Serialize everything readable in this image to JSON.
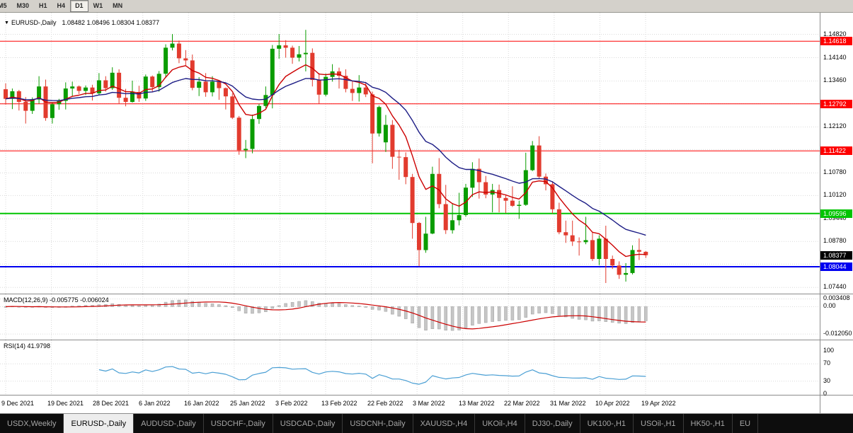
{
  "toolbar": {
    "periods": [
      "M5",
      "M30",
      "H1",
      "H4",
      "D1",
      "W1",
      "MN"
    ],
    "active_period": "D1"
  },
  "chart": {
    "title": {
      "dropdown_icon": "▼",
      "symbol": "EURUSD-,Daily",
      "ohlc": "1.08482 1.08496 1.08304 1.08377"
    },
    "axis": {
      "p_max": 1.1545,
      "p_min": 1.0726,
      "grid_prices": [
        1.1482,
        1.1414,
        1.1346,
        1.128,
        1.1212,
        1.1146,
        1.1078,
        1.1012,
        1.0944,
        1.0878,
        1.0812,
        1.0744
      ],
      "labels": [
        {
          "text": "1.14820",
          "price": 1.1482
        },
        {
          "text": "1.14140",
          "price": 1.1414
        },
        {
          "text": "1.13460",
          "price": 1.1346
        },
        {
          "text": "1.12120",
          "price": 1.1212
        },
        {
          "text": "1.10780",
          "price": 1.1078
        },
        {
          "text": "1.10120",
          "price": 1.1012
        },
        {
          "text": "1.09440",
          "price": 1.0944
        },
        {
          "text": "1.08780",
          "price": 1.0878
        },
        {
          "text": "1.07440",
          "price": 1.0744
        }
      ]
    },
    "hlines": [
      {
        "label": "1.14618",
        "price": 1.14618,
        "color": "#fe0000",
        "width": 1
      },
      {
        "label": "1.12792",
        "price": 1.12792,
        "color": "#fe0000",
        "width": 1
      },
      {
        "label": "1.11422",
        "price": 1.11422,
        "color": "#fe0000",
        "width": 1
      },
      {
        "label": "1.09596",
        "price": 1.09596,
        "color": "#00c400",
        "width": 2
      },
      {
        "label": "1.08044",
        "price": 1.08044,
        "color": "#0000f0",
        "width": 2
      }
    ],
    "current_price": {
      "label": "1.08377",
      "price": 1.08377,
      "bg": "#000000"
    }
  },
  "chart_data": {
    "type": "candlestick",
    "symbol": "EURUSD-",
    "timeframe": "Daily",
    "current_ohlc": {
      "open": 1.08482,
      "high": 1.08496,
      "low": 1.08304,
      "close": 1.08377
    },
    "y_range": [
      1.0726,
      1.1545
    ],
    "horizontal_levels": [
      1.14618,
      1.12792,
      1.11422,
      1.09596,
      1.08044
    ],
    "x_tick_labels": [
      "9 Dec 2021",
      "19 Dec 2021",
      "28 Dec 2021",
      "6 Jan 2022",
      "16 Jan 2022",
      "25 Jan 2022",
      "3 Feb 2022",
      "13 Feb 2022",
      "22 Feb 2022",
      "3 Mar 2022",
      "13 Mar 2022",
      "22 Mar 2022",
      "31 Mar 2022",
      "10 Apr 2022",
      "19 Apr 2022"
    ],
    "candles": [
      [
        1.1322,
        1.1339,
        1.1277,
        1.1294
      ],
      [
        1.1294,
        1.1324,
        1.1264,
        1.1316
      ],
      [
        1.1316,
        1.132,
        1.126,
        1.1285
      ],
      [
        1.1285,
        1.1299,
        1.1222,
        1.1259
      ],
      [
        1.1259,
        1.1298,
        1.125,
        1.1292
      ],
      [
        1.1292,
        1.136,
        1.128,
        1.133
      ],
      [
        1.133,
        1.135,
        1.123,
        1.1238
      ],
      [
        1.1238,
        1.1282,
        1.1222,
        1.1278
      ],
      [
        1.1278,
        1.1294,
        1.1262,
        1.1288
      ],
      [
        1.1288,
        1.1342,
        1.1263,
        1.1324
      ],
      [
        1.1324,
        1.1344,
        1.1301,
        1.133
      ],
      [
        1.133,
        1.1333,
        1.1308,
        1.1317
      ],
      [
        1.1317,
        1.1333,
        1.1305,
        1.1327
      ],
      [
        1.1327,
        1.1335,
        1.1289,
        1.131
      ],
      [
        1.131,
        1.1369,
        1.1304,
        1.1348
      ],
      [
        1.1348,
        1.136,
        1.1315,
        1.1325
      ],
      [
        1.1325,
        1.1386,
        1.132,
        1.137
      ],
      [
        1.137,
        1.138,
        1.1279,
        1.1297
      ],
      [
        1.1297,
        1.1323,
        1.1272,
        1.1285
      ],
      [
        1.1285,
        1.1347,
        1.1283,
        1.1314
      ],
      [
        1.1314,
        1.1332,
        1.1285,
        1.1295
      ],
      [
        1.1295,
        1.1365,
        1.1288,
        1.1359
      ],
      [
        1.1359,
        1.1362,
        1.1314,
        1.1328
      ],
      [
        1.1328,
        1.1375,
        1.1315,
        1.1367
      ],
      [
        1.1367,
        1.1453,
        1.1355,
        1.1443
      ],
      [
        1.1443,
        1.1483,
        1.1435,
        1.1455
      ],
      [
        1.1455,
        1.1464,
        1.1398,
        1.1412
      ],
      [
        1.1412,
        1.1436,
        1.1392,
        1.1406
      ],
      [
        1.1406,
        1.1423,
        1.1319,
        1.1326
      ],
      [
        1.1326,
        1.1357,
        1.1302,
        1.1344
      ],
      [
        1.1344,
        1.1369,
        1.13,
        1.1313
      ],
      [
        1.1313,
        1.136,
        1.1301,
        1.1344
      ],
      [
        1.1344,
        1.1349,
        1.1291,
        1.1325
      ],
      [
        1.1325,
        1.1327,
        1.1263,
        1.1301
      ],
      [
        1.1301,
        1.131,
        1.1235,
        1.1239
      ],
      [
        1.1239,
        1.1244,
        1.1131,
        1.1144
      ],
      [
        1.1144,
        1.1174,
        1.1121,
        1.1148
      ],
      [
        1.1148,
        1.1248,
        1.1135,
        1.1235
      ],
      [
        1.1235,
        1.1279,
        1.1221,
        1.1273
      ],
      [
        1.1273,
        1.133,
        1.1267,
        1.1305
      ],
      [
        1.1305,
        1.1451,
        1.1266,
        1.144
      ],
      [
        1.144,
        1.1483,
        1.1411,
        1.145
      ],
      [
        1.145,
        1.1465,
        1.1414,
        1.1443
      ],
      [
        1.1443,
        1.1449,
        1.1396,
        1.1414
      ],
      [
        1.1414,
        1.1448,
        1.1403,
        1.1424
      ],
      [
        1.1424,
        1.1495,
        1.1374,
        1.1428
      ],
      [
        1.1428,
        1.1441,
        1.133,
        1.1349
      ],
      [
        1.1349,
        1.1369,
        1.128,
        1.1306
      ],
      [
        1.1306,
        1.1368,
        1.1301,
        1.1358
      ],
      [
        1.1358,
        1.1395,
        1.1344,
        1.1374
      ],
      [
        1.1374,
        1.1385,
        1.1324,
        1.1361
      ],
      [
        1.1361,
        1.138,
        1.1313,
        1.1323
      ],
      [
        1.1323,
        1.1345,
        1.1288,
        1.1311
      ],
      [
        1.1311,
        1.1363,
        1.1286,
        1.1327
      ],
      [
        1.1327,
        1.1343,
        1.1299,
        1.1307
      ],
      [
        1.1307,
        1.1315,
        1.1106,
        1.1193
      ],
      [
        1.1193,
        1.1274,
        1.1184,
        1.127
      ],
      [
        1.1167,
        1.1247,
        1.1139,
        1.1218
      ],
      [
        1.1218,
        1.1232,
        1.109,
        1.1125
      ],
      [
        1.1125,
        1.1145,
        1.1058,
        1.1124
      ],
      [
        1.1124,
        1.1138,
        1.1045,
        1.1066
      ],
      [
        1.1066,
        1.1075,
        1.0886,
        1.0932
      ],
      [
        1.0932,
        1.0935,
        1.0806,
        1.0853
      ],
      [
        1.0853,
        1.095,
        1.0845,
        1.0901
      ],
      [
        1.0901,
        1.1096,
        1.0899,
        1.1075
      ],
      [
        1.1075,
        1.1121,
        1.0975,
        1.0987
      ],
      [
        1.0987,
        1.1043,
        1.09,
        1.0911
      ],
      [
        1.0911,
        1.099,
        1.0901,
        1.094
      ],
      [
        1.094,
        1.102,
        1.0925,
        1.0955
      ],
      [
        1.0955,
        1.1046,
        1.095,
        1.1035
      ],
      [
        1.1035,
        1.1109,
        1.1008,
        1.109
      ],
      [
        1.109,
        1.112,
        1.1003,
        1.1051
      ],
      [
        1.1051,
        1.1069,
        1.1004,
        1.1015
      ],
      [
        1.1015,
        1.1046,
        1.0963,
        1.1028
      ],
      [
        1.1028,
        1.1044,
        1.0963,
        1.1005
      ],
      [
        1.1005,
        1.1014,
        1.0961,
        1.0997
      ],
      [
        1.0997,
        1.1039,
        1.0979,
        1.0982
      ],
      [
        1.0982,
        1.0997,
        1.0944,
        1.0985
      ],
      [
        1.0985,
        1.1137,
        1.0982,
        1.1086
      ],
      [
        1.1086,
        1.1171,
        1.1083,
        1.1158
      ],
      [
        1.1158,
        1.1185,
        1.106,
        1.1067
      ],
      [
        1.1067,
        1.1076,
        1.1027,
        1.1045
      ],
      [
        1.1045,
        1.1054,
        1.096,
        1.0972
      ],
      [
        1.0972,
        1.0991,
        1.0899,
        1.0905
      ],
      [
        1.0905,
        1.0939,
        1.0874,
        1.0896
      ],
      [
        1.0896,
        1.0939,
        1.0865,
        1.0878
      ],
      [
        1.0878,
        1.089,
        1.0837,
        1.0876
      ],
      [
        1.0876,
        1.095,
        1.087,
        1.0882
      ],
      [
        1.0882,
        1.0905,
        1.0821,
        1.0827
      ],
      [
        1.0827,
        1.0896,
        1.0809,
        1.0886
      ],
      [
        1.0886,
        1.0924,
        1.0757,
        1.0827
      ],
      [
        1.0827,
        1.0837,
        1.0798,
        1.0808
      ],
      [
        1.0808,
        1.082,
        1.0769,
        1.0781
      ],
      [
        1.0781,
        1.0815,
        1.0761,
        1.0786
      ],
      [
        1.0786,
        1.0867,
        1.0782,
        1.0853
      ],
      [
        1.0853,
        1.0887,
        1.0824,
        1.0848
      ],
      [
        1.0848,
        1.085,
        1.083,
        1.0838
      ]
    ],
    "indicators": [
      {
        "name": "MA-fast",
        "type": "ema",
        "period": 8
      },
      {
        "name": "MA-slow",
        "type": "ema",
        "period": 21
      },
      {
        "name": "MACD",
        "params": [
          12,
          26,
          9
        ],
        "current": [
          -0.005775,
          -0.006024
        ]
      },
      {
        "name": "RSI",
        "params": [
          14
        ],
        "current": 41.9798
      }
    ]
  },
  "macd": {
    "label": "MACD(12,26,9)",
    "values": "-0.005775 -0.006024",
    "scale": [
      {
        "text": "0.003408",
        "v": 0.003408
      },
      {
        "text": "0.00",
        "v": 0
      },
      {
        "text": "-0.012050",
        "v": -0.01205
      }
    ]
  },
  "rsi": {
    "label": "RSI(14)",
    "value": "41.9798",
    "levels": [
      70,
      30
    ],
    "scale": [
      {
        "text": "100",
        "v": 100
      },
      {
        "text": "70",
        "v": 70
      },
      {
        "text": "30",
        "v": 30
      },
      {
        "text": "0",
        "v": 0
      }
    ]
  },
  "tabs": {
    "active_index": 1,
    "items": [
      "USDX,Weekly",
      "EURUSD-,Daily",
      "AUDUSD-,Daily",
      "USDCHF-,Daily",
      "USDCAD-,Daily",
      "USDCNH-,Daily",
      "XAUUSD-,H4",
      "UKOil-,H4",
      "DJ30-,Daily",
      "UK100-,H1",
      "USOil-,H1",
      "HK50-,H1",
      "EU"
    ]
  },
  "colors": {
    "bull": "#0a9c00",
    "bear": "#e23b2e",
    "ma_fast": "#cc0000",
    "ma_slow": "#1c1c85",
    "macd_hist": "#c6c6c6",
    "macd_hist_stroke": "#9e9e9e",
    "macd_signal": "#cc0000",
    "rsi_line": "#4a9fd4",
    "grid": "#dadada",
    "frame": "#8c8c8c"
  }
}
